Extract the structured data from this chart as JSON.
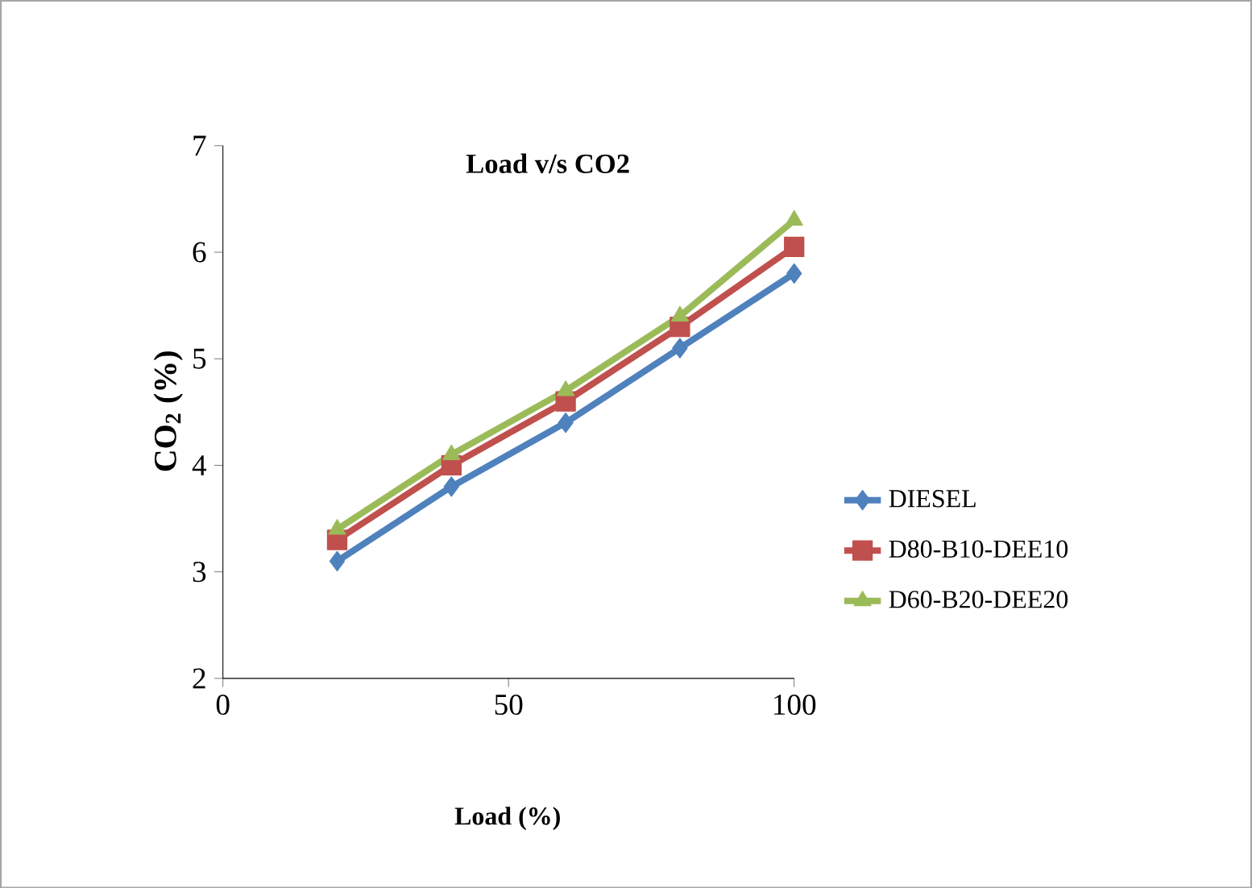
{
  "chart_data": {
    "type": "line",
    "title": "Load v/s CO2",
    "xlabel": "Load (%)",
    "ylabel": "CO$_{2}$ (%)",
    "x": [
      20,
      40,
      60,
      80,
      100
    ],
    "series": [
      {
        "name": "DIESEL",
        "color": "#4f81bd",
        "marker": "diamond",
        "values": [
          3.1,
          3.8,
          4.4,
          5.1,
          5.8
        ]
      },
      {
        "name": "D80-B10-DEE10",
        "color": "#c0504d",
        "marker": "square",
        "values": [
          3.3,
          4.0,
          4.6,
          5.3,
          6.05
        ]
      },
      {
        "name": "D60-B20-DEE20",
        "color": "#9bbb59",
        "marker": "triangle",
        "values": [
          3.4,
          4.1,
          4.7,
          5.4,
          6.3
        ]
      }
    ],
    "xlim": [
      0,
      100
    ],
    "xticks": [
      0,
      50,
      100
    ],
    "ylim": [
      2,
      7
    ],
    "yticks": [
      2,
      3,
      4,
      5,
      6,
      7
    ],
    "grid": false,
    "legend": "right",
    "line_style": "solid"
  }
}
